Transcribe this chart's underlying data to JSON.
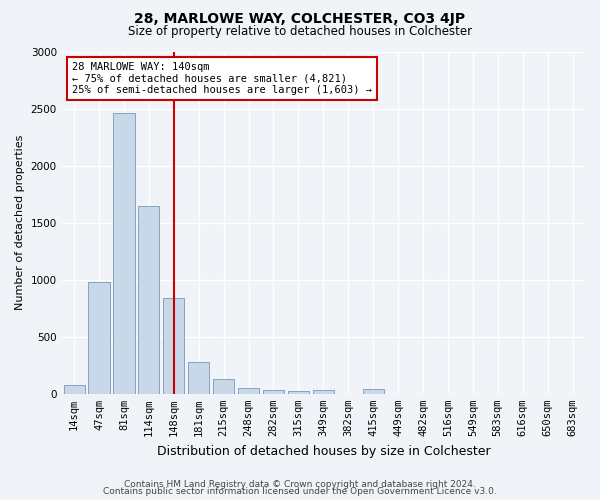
{
  "title1": "28, MARLOWE WAY, COLCHESTER, CO3 4JP",
  "title2": "Size of property relative to detached houses in Colchester",
  "xlabel": "Distribution of detached houses by size in Colchester",
  "ylabel": "Number of detached properties",
  "categories": [
    "14sqm",
    "47sqm",
    "81sqm",
    "114sqm",
    "148sqm",
    "181sqm",
    "215sqm",
    "248sqm",
    "282sqm",
    "315sqm",
    "349sqm",
    "382sqm",
    "415sqm",
    "449sqm",
    "482sqm",
    "516sqm",
    "549sqm",
    "583sqm",
    "616sqm",
    "650sqm",
    "683sqm"
  ],
  "values": [
    75,
    980,
    2460,
    1650,
    840,
    280,
    130,
    55,
    35,
    25,
    30,
    0,
    40,
    0,
    0,
    0,
    0,
    0,
    0,
    0,
    0
  ],
  "bar_color": "#c8d8e8",
  "bar_edge_color": "#7799bb",
  "vline_index": 4,
  "vline_color": "#cc0000",
  "annotation_text": "28 MARLOWE WAY: 140sqm\n← 75% of detached houses are smaller (4,821)\n25% of semi-detached houses are larger (1,603) →",
  "annotation_box_facecolor": "#ffffff",
  "annotation_box_edgecolor": "#cc0000",
  "ylim": [
    0,
    3000
  ],
  "yticks": [
    0,
    500,
    1000,
    1500,
    2000,
    2500,
    3000
  ],
  "footer1": "Contains HM Land Registry data © Crown copyright and database right 2024.",
  "footer2": "Contains public sector information licensed under the Open Government Licence v3.0.",
  "fig_facecolor": "#f0f4f8",
  "plot_facecolor": "#f0f4f8",
  "grid_color": "#ffffff",
  "title1_fontsize": 10,
  "title2_fontsize": 8.5,
  "ylabel_fontsize": 8,
  "xlabel_fontsize": 9,
  "tick_fontsize": 7.5,
  "annotation_fontsize": 7.5,
  "footer_fontsize": 6.5
}
